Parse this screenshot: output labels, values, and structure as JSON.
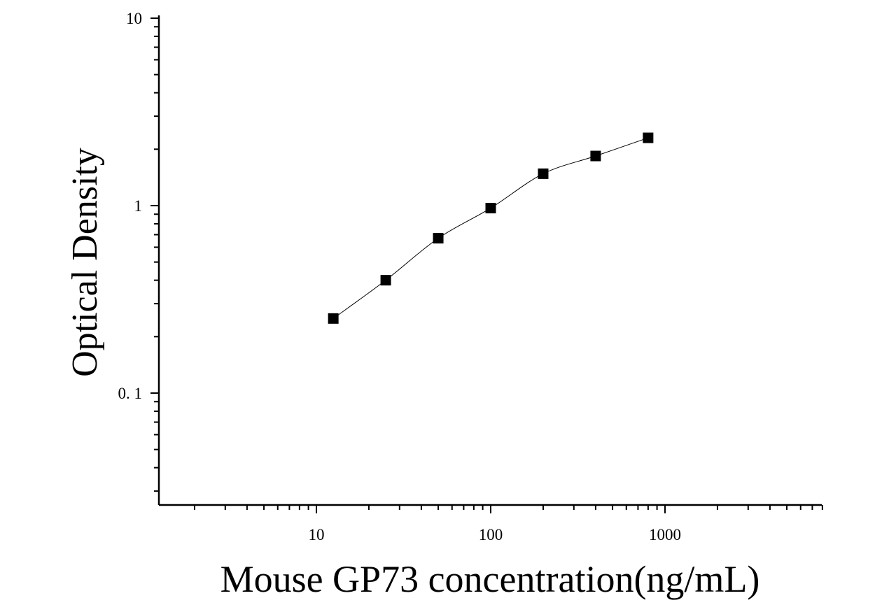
{
  "chart_data": {
    "type": "scatter",
    "title": "",
    "xlabel": "Mouse GP73 concentration(ng/mL)",
    "ylabel": "Optical Density",
    "x_scale": "log",
    "y_scale": "log",
    "xlim": [
      1.2,
      8000
    ],
    "ylim": [
      0.025,
      10
    ],
    "x_ticks": [
      {
        "value": 10,
        "label": "10"
      },
      {
        "value": 100,
        "label": "100"
      },
      {
        "value": 1000,
        "label": "1000"
      }
    ],
    "y_ticks": [
      {
        "value": 10,
        "label": "10"
      },
      {
        "value": 1,
        "label": "1"
      },
      {
        "value": 0.1,
        "label": "0. 1"
      }
    ],
    "grid": false,
    "legend": "none",
    "series": [
      {
        "x": [
          12.5,
          25,
          50,
          100,
          200,
          400,
          800
        ],
        "y": [
          0.25,
          0.4,
          0.67,
          0.97,
          1.48,
          1.84,
          2.3
        ],
        "marker": "square",
        "color": "#000000",
        "fit_line": true
      }
    ]
  }
}
